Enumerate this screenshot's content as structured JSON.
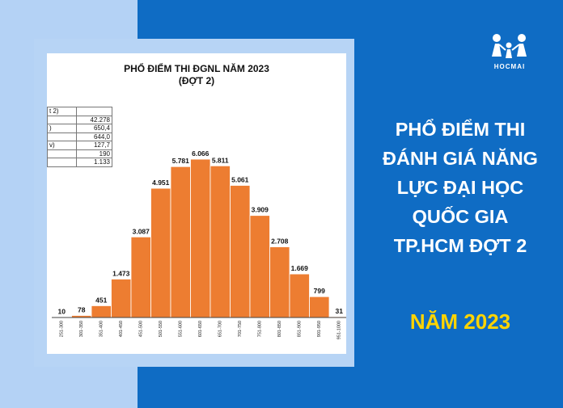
{
  "chart_title_line1": "PHỔ ĐIỂM THI ĐGNL NĂM 2023",
  "chart_title_line2": "(ĐỢT 2)",
  "stats_table": [
    {
      "label": "t 2)",
      "value": ""
    },
    {
      "label": "",
      "value": "42.278"
    },
    {
      "label": ")",
      "value": "650,4"
    },
    {
      "label": "",
      "value": "644,0"
    },
    {
      "label": "v)",
      "value": "127,7"
    },
    {
      "label": "",
      "value": "190"
    },
    {
      "label": "",
      "value": "1.133"
    }
  ],
  "chart_data": {
    "type": "bar",
    "title": "PHỔ ĐIỂM THI ĐGNL NĂM 2023",
    "subtitle": "(ĐỢT 2)",
    "categories": [
      "251-300",
      "301-350",
      "351-400",
      "401-450",
      "451-500",
      "501-550",
      "551-600",
      "601-650",
      "651-700",
      "701-750",
      "751-800",
      "801-850",
      "851-900",
      "901-950",
      "951-1000"
    ],
    "values": [
      10,
      78,
      451,
      1473,
      3087,
      4951,
      5781,
      6066,
      5811,
      5061,
      3909,
      2708,
      1669,
      799,
      31
    ],
    "data_labels": [
      "10",
      "78",
      "451",
      "1.473",
      "3.087",
      "4.951",
      "5.781",
      "6.066",
      "5.811",
      "5.061",
      "3.909",
      "2.708",
      "1.669",
      "799",
      "31"
    ],
    "bar_color": "#ed7d31",
    "xlabel": "",
    "ylabel": "",
    "ylim": [
      0,
      6500
    ],
    "grid": false,
    "legend": "none"
  },
  "logo": {
    "text": "HOCMAI",
    "icon": "family-people-icon"
  },
  "headline_lines": [
    "PHỔ ĐIỂM THI",
    "ĐÁNH GIÁ NĂNG",
    "LỰC ĐẠI HỌC",
    "QUỐC GIA",
    "TP.HCM ĐỢT 2"
  ],
  "year_label": "NĂM 2023",
  "colors": {
    "background": "#0f6cc4",
    "left_band": "#b4d2f5",
    "frame": "#b7d4f5",
    "accent_text": "#ffd400",
    "bar": "#ed7d31"
  }
}
